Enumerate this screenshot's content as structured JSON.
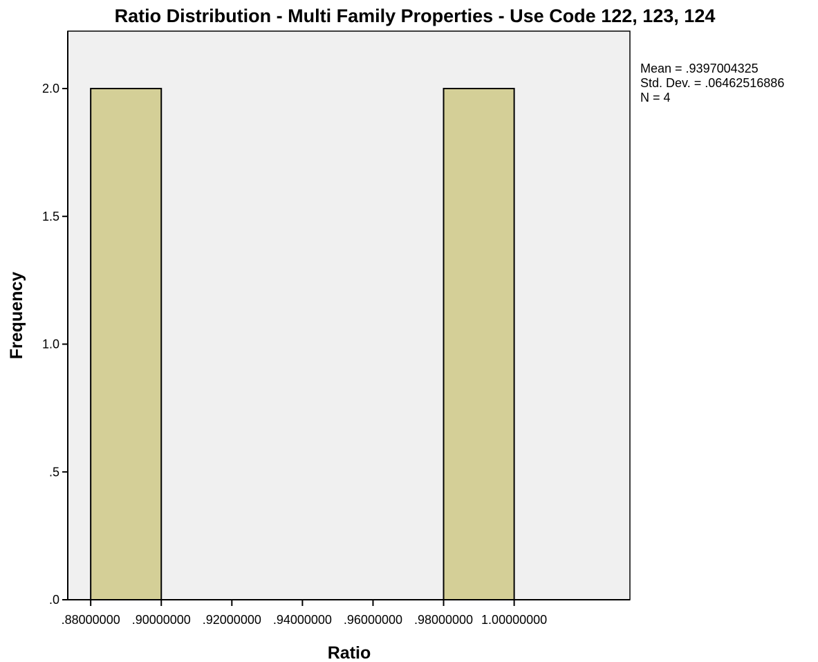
{
  "chart_data": {
    "type": "bar",
    "title": "Ratio Distribution - Multi Family Properties - Use Code 122, 123, 124",
    "xlabel": "Ratio",
    "ylabel": "Frequency",
    "bins": [
      {
        "start": 0.88,
        "end": 0.9,
        "frequency": 2
      },
      {
        "start": 0.9,
        "end": 0.92,
        "frequency": 0
      },
      {
        "start": 0.92,
        "end": 0.94,
        "frequency": 0
      },
      {
        "start": 0.94,
        "end": 0.96,
        "frequency": 0
      },
      {
        "start": 0.96,
        "end": 0.98,
        "frequency": 0
      },
      {
        "start": 0.98,
        "end": 1.0,
        "frequency": 2
      }
    ],
    "xlim": [
      0.8735,
      1.0328
    ],
    "ylim": [
      0,
      2.2
    ],
    "x_ticks": [
      0.88,
      0.9,
      0.92,
      0.94,
      0.96,
      0.98,
      1.0
    ],
    "x_tick_labels": [
      ".88000000",
      ".90000000",
      ".92000000",
      ".94000000",
      ".96000000",
      ".98000000",
      "1.00000000"
    ],
    "y_ticks": [
      0,
      0.5,
      1.0,
      1.5,
      2.0
    ],
    "y_tick_labels": [
      ".0",
      ".5",
      "1.0",
      "1.5",
      "2.0"
    ],
    "grid": false,
    "stats": {
      "mean_label": "Mean = .9397004325",
      "std_label": "Std. Dev. = .06462516886",
      "n_label": "N = 4"
    },
    "colors": {
      "bar_fill": "#d4cf97",
      "bar_stroke": "#000000",
      "plot_background": "#f0f0f0",
      "axis": "#000000"
    }
  }
}
